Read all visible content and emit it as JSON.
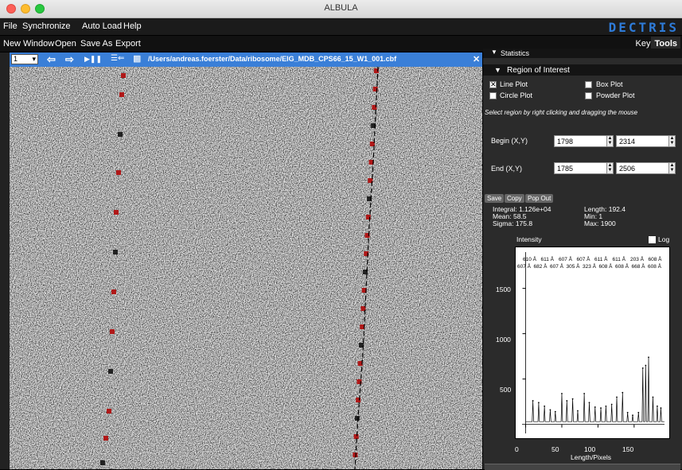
{
  "window": {
    "title": "ALBULA"
  },
  "menu": {
    "items": [
      "File",
      "Synchronize",
      "Auto Load",
      "Help"
    ],
    "brand": "DECTRIS"
  },
  "toolbar": {
    "items": [
      "New Window",
      "Open",
      "Save As",
      "Export"
    ],
    "tab_keys": "Keys",
    "tab_tools": "Tools"
  },
  "image_panel": {
    "frame_number": "1",
    "path": "/Users/andreas.foerster/Data/ribosome/EIG_MDB_CPS66_15_W1_001.cbf"
  },
  "panel": {
    "statistics_header": "Statistics",
    "roi_header": "Region of Interest",
    "line_plot": "Line Plot",
    "box_plot": "Box Plot",
    "circle_plot": "Circle Plot",
    "powder_plot": "Powder Plot",
    "line_plot_checked": true,
    "hint": "Select region by right clicking and dragging the mouse",
    "begin_label": "Begin (X,Y)",
    "begin_x": "1798",
    "begin_y": "2314",
    "end_label": "End (X,Y)",
    "end_x": "1785",
    "end_y": "2506",
    "save": "Save",
    "copy": "Copy",
    "pop_out": "Pop Out",
    "integral": "Integral: 1.126e+04",
    "mean": "Mean: 58.5",
    "sigma": "Sigma: 175.8",
    "length": "Length: 192.4",
    "min": "Min: 1",
    "max": "Max: 1900"
  },
  "chart_data": {
    "type": "line",
    "title": "Intensity",
    "xlabel": "Length/Pixels",
    "ylabel": "",
    "log_label": "Log",
    "xlim": [
      -5,
      192
    ],
    "ylim": [
      -100,
      1900
    ],
    "xticks": [
      0,
      50,
      100,
      150
    ],
    "yticks": [
      500,
      1000,
      1500
    ],
    "resolution_labels_top": [
      "610 Å",
      "611 Å",
      "607 Å",
      "607 Å",
      "611 Å",
      "611 Å",
      "203 Å",
      "608 Å"
    ],
    "resolution_labels_bottom": [
      "607 Å",
      "682 Å",
      "607 Å",
      "305 Å",
      "323 Å",
      "608 Å",
      "608 Å",
      "668 Å",
      "608 Å"
    ],
    "peaks_x": [
      10,
      18,
      26,
      34,
      41,
      50,
      57,
      65,
      72,
      81,
      88,
      96,
      104,
      111,
      119,
      126,
      134,
      141,
      148,
      156,
      162,
      166,
      170,
      176,
      182,
      187
    ],
    "peaks_y": [
      260,
      240,
      200,
      160,
      140,
      340,
      260,
      280,
      150,
      340,
      240,
      190,
      180,
      200,
      220,
      300,
      350,
      130,
      100,
      130,
      620,
      650,
      740,
      300,
      200,
      180
    ]
  }
}
